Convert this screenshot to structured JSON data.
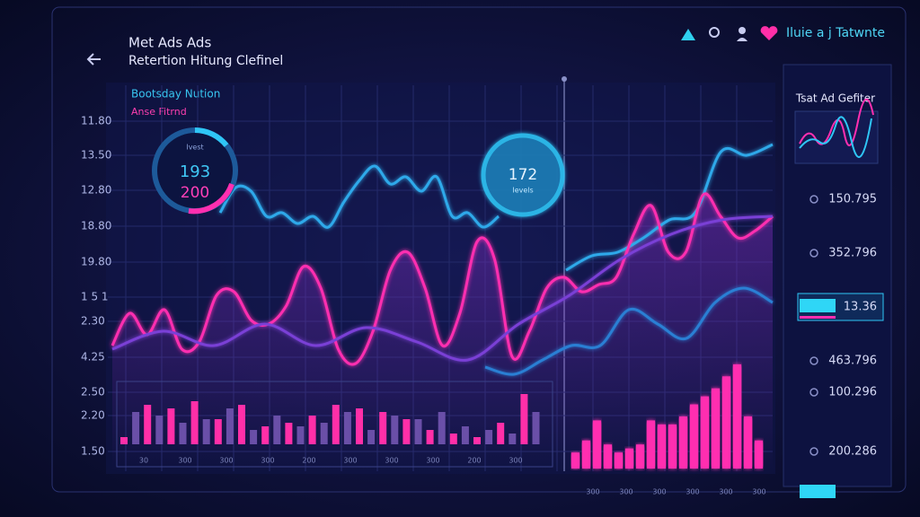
{
  "header": {
    "title": "Met Ads Ads",
    "subtitle": "Retertion Hitung Clefinel",
    "top_right": "Iluie a j Tatwnte"
  },
  "y_labels": [
    "11.80",
    "13.50",
    "12.80",
    "18.80",
    "19.80",
    "1 5 1",
    "2.30",
    "4.25",
    "2.50",
    "2.20",
    "1.50"
  ],
  "legend": {
    "line1": "Bootsday Nution",
    "line2": "Anse Fitrnd"
  },
  "gauges": [
    {
      "caption": "Ivest",
      "value1": "193",
      "value2": "200"
    },
    {
      "value": "172",
      "caption": "Ievels"
    }
  ],
  "main_chart": {
    "ylim": [
      0,
      100
    ],
    "lines": [
      {
        "color": "#2fa9ea",
        "values": [
          72,
          79,
          78,
          71,
          72,
          69,
          71,
          68,
          75,
          81,
          85,
          80,
          82,
          78,
          82,
          71,
          72,
          68,
          71
        ]
      },
      {
        "color": "#2fa9ea",
        "values": [
          56,
          60,
          61,
          65,
          70,
          72,
          89,
          88,
          91
        ]
      },
      {
        "color": "#ff2fb0",
        "values": [
          35,
          44,
          38,
          45,
          34,
          36,
          49,
          50,
          42,
          41,
          46,
          57,
          51,
          34,
          30,
          39,
          56,
          61,
          51,
          35,
          44,
          64,
          59,
          32,
          39,
          51,
          54,
          50,
          52,
          54,
          66,
          74,
          61,
          61,
          77,
          71,
          65,
          67,
          71
        ]
      },
      {
        "color": "#7a3fd6",
        "values": [
          34,
          39,
          35,
          41,
          35,
          40,
          36,
          31,
          41,
          49,
          59,
          66,
          70,
          71
        ]
      },
      {
        "color": "#2a7fd4",
        "values": [
          29,
          27,
          31,
          35,
          35,
          45,
          41,
          37,
          47,
          51,
          47
        ]
      }
    ]
  },
  "bars_left": {
    "ylim": [
      0,
      100
    ],
    "series": [
      {
        "color": "#ff2fa8",
        "values": [
          10,
          55,
          50,
          60,
          35,
          55,
          25,
          30,
          40,
          55,
          50,
          45,
          35,
          20,
          15,
          10,
          30,
          70
        ]
      },
      {
        "color": "#6a4fa8",
        "values": [
          45,
          40,
          30,
          35,
          50,
          20,
          40,
          25,
          30,
          45,
          20,
          40,
          35,
          45,
          25,
          20,
          15,
          45
        ]
      }
    ]
  },
  "bars_right": {
    "ylim": [
      0,
      140
    ],
    "color": "#ff2fb0",
    "values": [
      20,
      35,
      60,
      30,
      20,
      25,
      30,
      60,
      55,
      55,
      65,
      80,
      90,
      100,
      115,
      130,
      65,
      35
    ]
  },
  "x_labels_left": [
    "30",
    "300",
    "300",
    "300",
    "200",
    "300",
    "300",
    "300",
    "200",
    "300"
  ],
  "x_labels_right": [
    "300",
    "300",
    "300",
    "300",
    "300",
    "300"
  ],
  "side_panel": {
    "title": "Tsat Ad Gefiter",
    "rows": [
      "150.795",
      "352.796",
      "13.36",
      "463.796",
      "100.296",
      "200.286"
    ]
  }
}
